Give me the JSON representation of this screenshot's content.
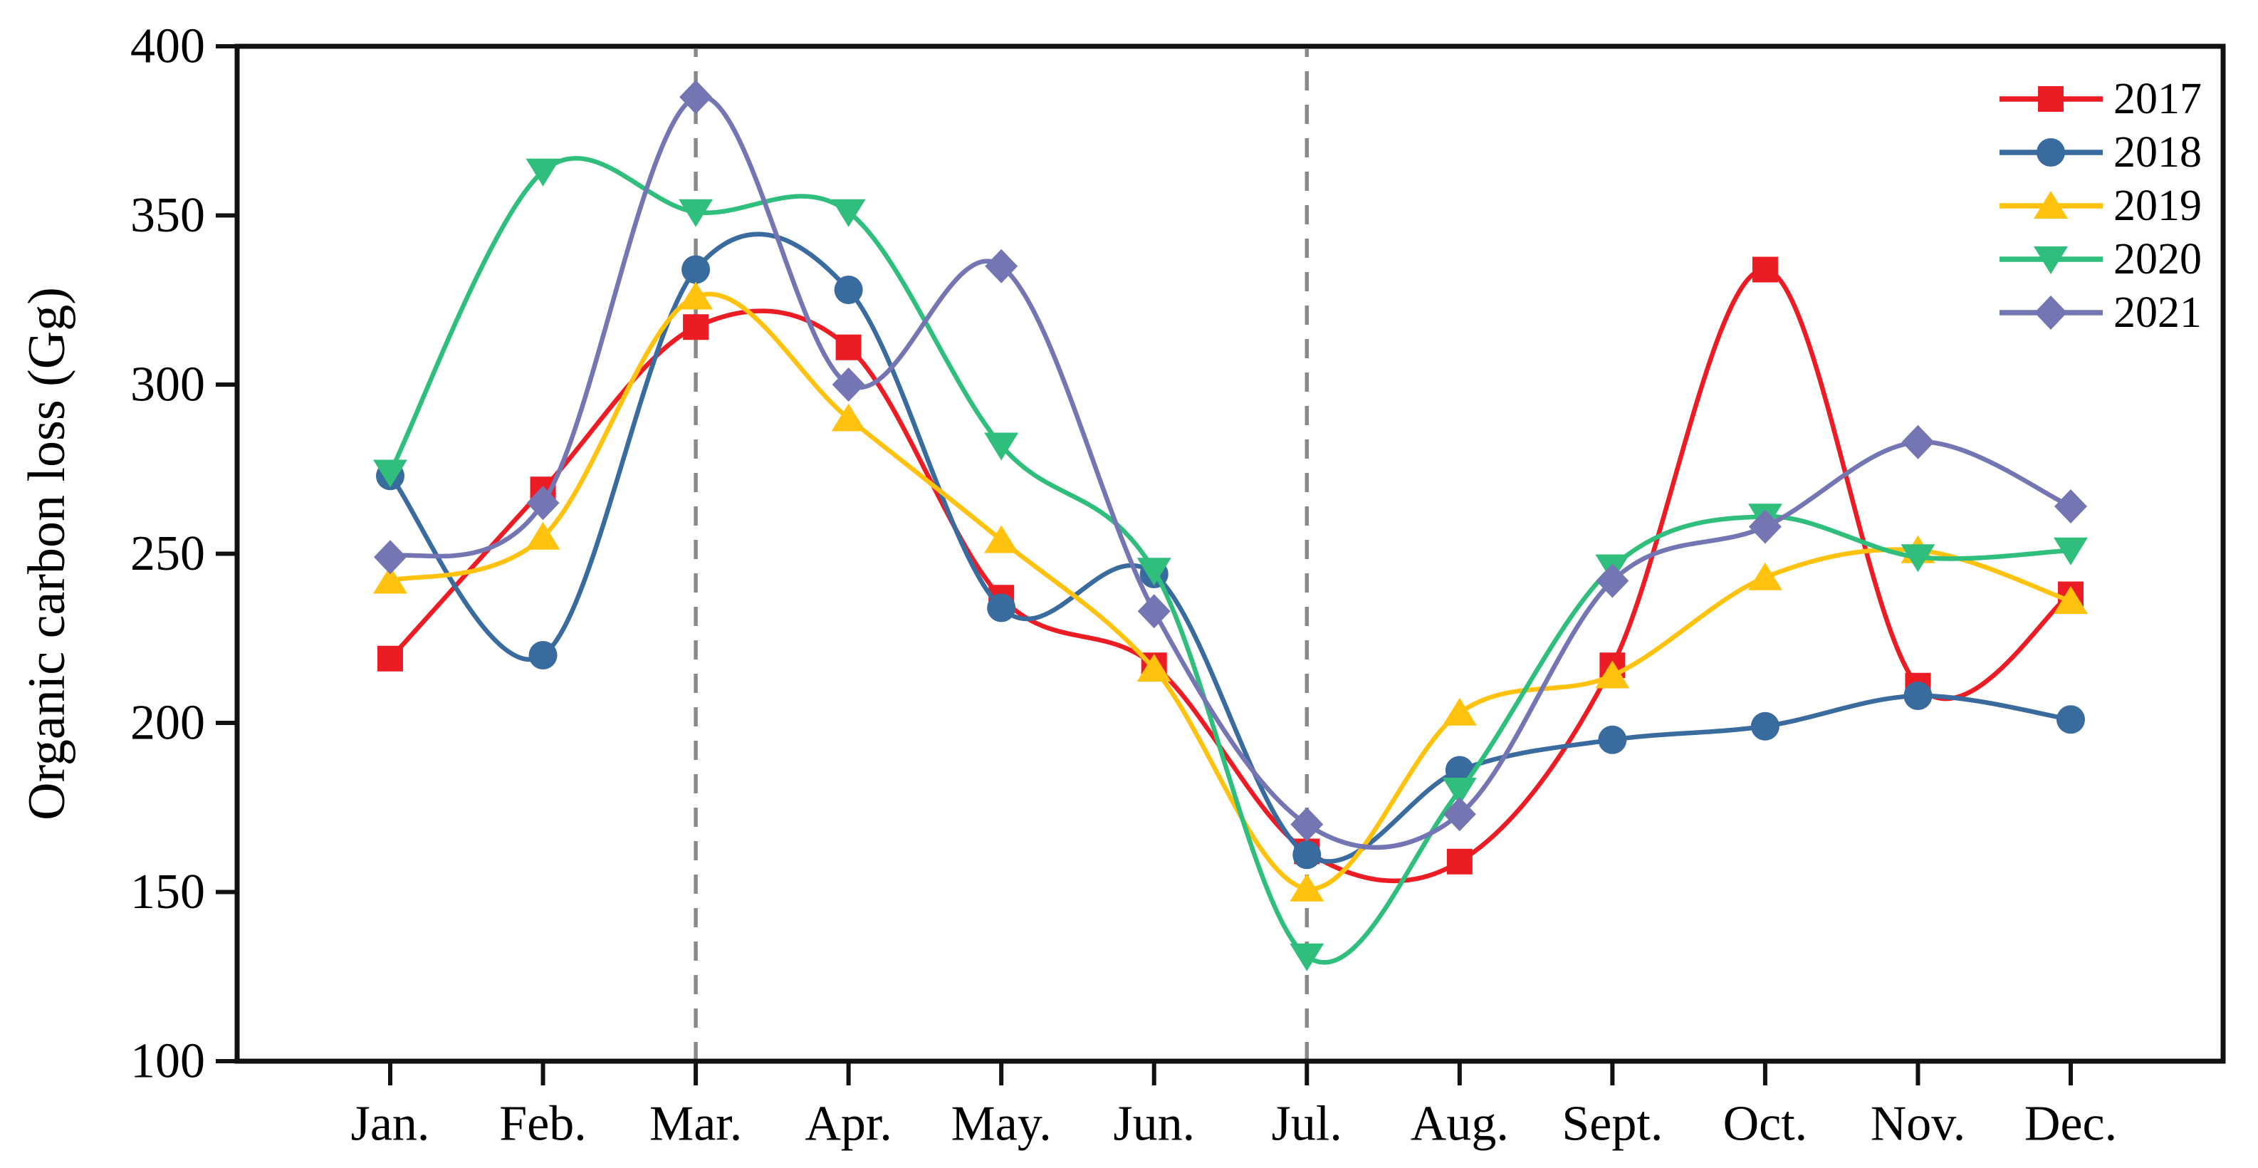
{
  "chart_data": {
    "type": "line",
    "title": "",
    "xlabel": "",
    "ylabel": "Organic carbon loss (Gg)",
    "categories": [
      "Jan.",
      "Feb.",
      "Mar.",
      "Apr.",
      "May.",
      "Jun.",
      "Jul.",
      "Aug.",
      "Sept.",
      "Oct.",
      "Nov.",
      "Dec."
    ],
    "ylim": [
      100,
      400
    ],
    "yticks": [
      100,
      150,
      200,
      250,
      300,
      350,
      400
    ],
    "grid": false,
    "legend_position": "top-right-inside",
    "curve_style": "smooth-spline",
    "dashed_vlines": [
      "Mar.",
      "Jul."
    ],
    "dashed_line_color": "#8a8a8a",
    "axis_color": "#111111",
    "background_color": "#ffffff",
    "series": [
      {
        "name": "2017",
        "color": "#EC1C24",
        "marker": "square",
        "values": [
          219,
          269,
          317,
          311,
          237,
          217,
          162,
          159,
          217,
          334,
          211,
          238
        ]
      },
      {
        "name": "2018",
        "color": "#3A6B9F",
        "marker": "circle",
        "values": [
          273,
          220,
          334,
          328,
          234,
          244,
          161,
          186,
          195,
          199,
          208,
          201
        ]
      },
      {
        "name": "2019",
        "color": "#FFC20E",
        "marker": "triangle-up",
        "values": [
          242,
          255,
          326,
          290,
          254,
          216,
          151,
          203,
          214,
          243,
          251,
          236
        ]
      },
      {
        "name": "2020",
        "color": "#2FBE7B",
        "marker": "triangle-down",
        "values": [
          274,
          363,
          351,
          351,
          282,
          245,
          131,
          180,
          246,
          261,
          249,
          251
        ]
      },
      {
        "name": "2021",
        "color": "#7476B4",
        "marker": "diamond",
        "values": [
          249,
          265,
          385,
          300,
          335,
          233,
          170,
          173,
          242,
          258,
          283,
          264
        ]
      }
    ]
  }
}
